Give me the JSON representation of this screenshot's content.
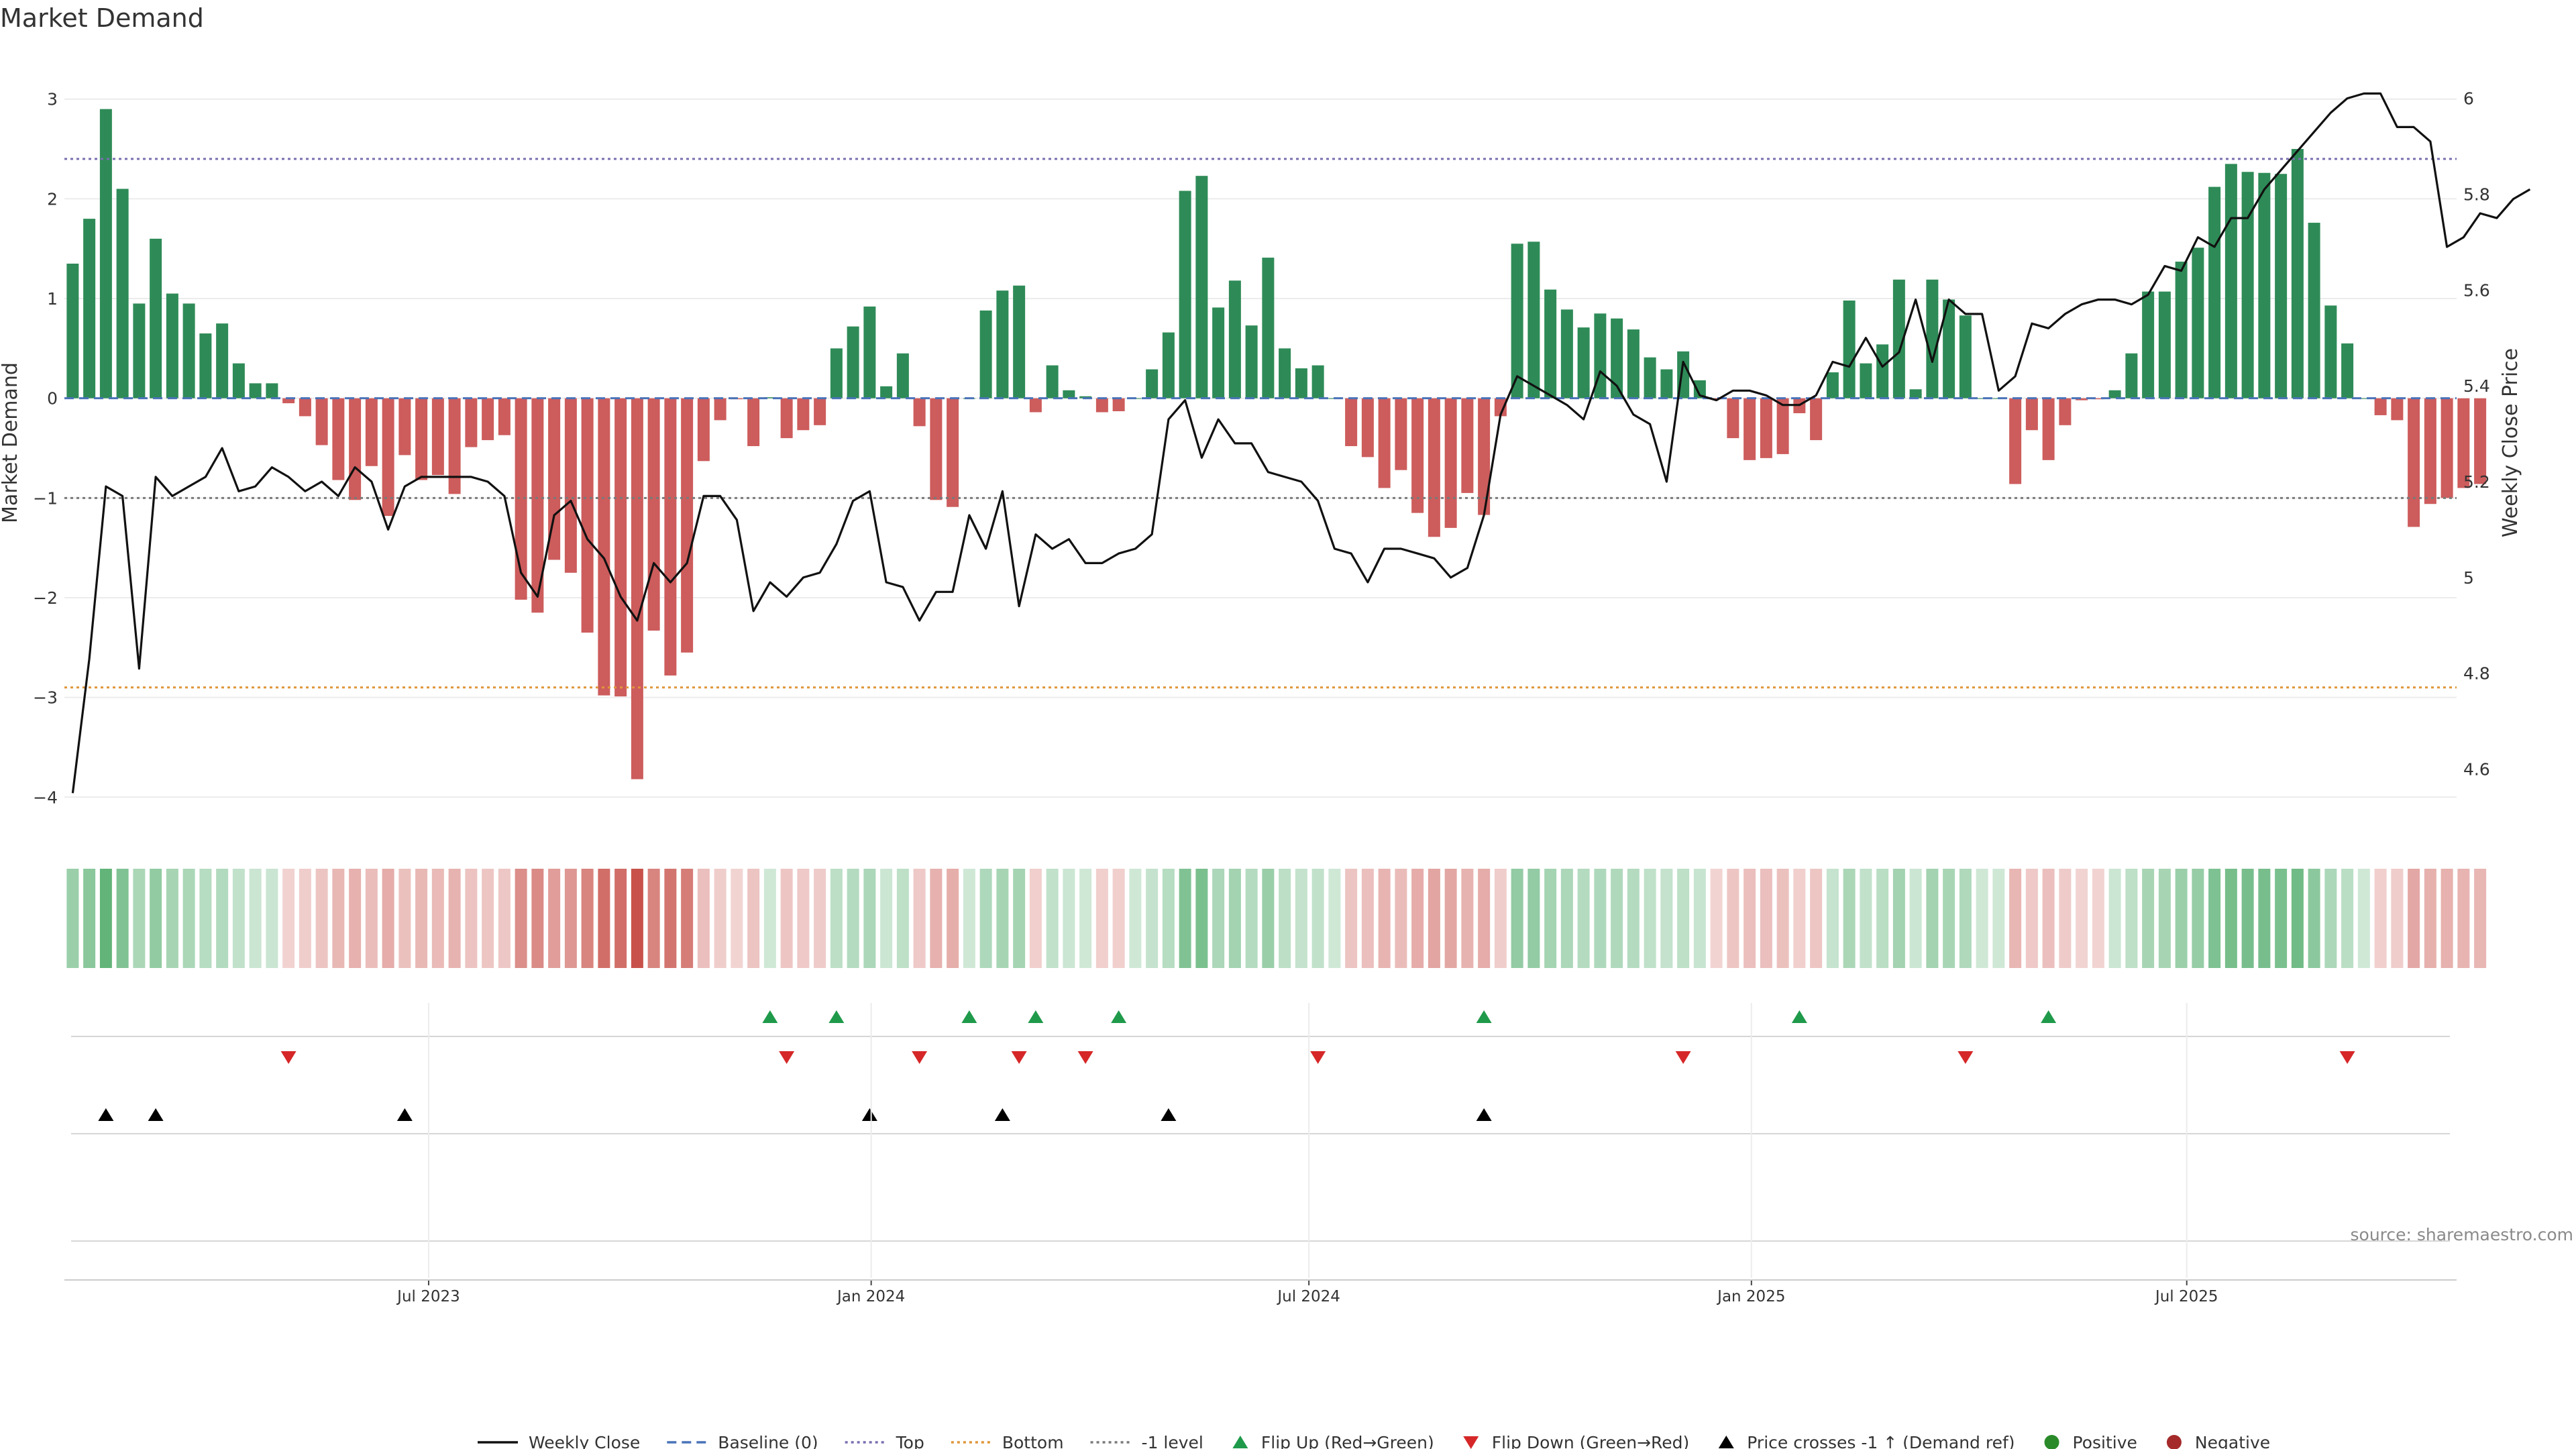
{
  "chart_data": {
    "type": "bar",
    "title": "Market Demand",
    "ylabel": "Market Demand",
    "y2label": "Weekly Close Price",
    "source": "source: sharemaestro.com",
    "ylim": [
      -4.2,
      3.2
    ],
    "y_ticks": [
      3,
      2,
      1,
      0,
      -1,
      -2,
      -3,
      -4
    ],
    "y_tick_labels": [
      "3",
      "2",
      "1",
      "0",
      "−1",
      "−2",
      "−3",
      "−4"
    ],
    "y2lim": [
      4.5,
      6.04
    ],
    "y2_ticks": [
      6,
      5.8,
      5.6,
      5.4,
      5.2,
      5,
      4.8,
      4.6
    ],
    "y2_tick_labels": [
      "6",
      "5.8",
      "5.6",
      "5.4",
      "5.2",
      "5",
      "4.8",
      "4.6"
    ],
    "levels": {
      "top": 2.4,
      "bottom": -2.9,
      "minus_one": -1
    },
    "x_start": "2023-02-03",
    "x_end": "2025-10-31",
    "x_ticks": [
      {
        "date": "2023-07-01",
        "label": "Jul 2023"
      },
      {
        "date": "2024-01-01",
        "label": "Jan 2024"
      },
      {
        "date": "2024-07-01",
        "label": "Jul 2024"
      },
      {
        "date": "2025-01-01",
        "label": "Jan 2025"
      },
      {
        "date": "2025-07-01",
        "label": "Jul 2025"
      }
    ],
    "series": [
      {
        "name": "Market Demand",
        "values": [
          1.35,
          1.8,
          2.9,
          2.1,
          0.95,
          1.6,
          1.05,
          0.95,
          0.65,
          0.75,
          0.35,
          0.15,
          0.15,
          -0.05,
          -0.18,
          -0.47,
          -0.82,
          -1.02,
          -0.68,
          -1.18,
          -0.57,
          -0.82,
          -0.77,
          -0.96,
          -0.49,
          -0.42,
          -0.37,
          -2.02,
          -2.15,
          -1.62,
          -1.75,
          -2.35,
          -2.98,
          -2.99,
          -3.82,
          -2.33,
          -2.78,
          -2.55,
          -0.63,
          -0.22,
          -0.01,
          -0.48,
          0.01,
          -0.4,
          -0.32,
          -0.27,
          0.5,
          0.72,
          0.92,
          0.12,
          0.45,
          -0.28,
          -1.02,
          -1.09,
          0,
          0.88,
          1.08,
          1.13,
          -0.14,
          0.33,
          0.08,
          0.02,
          -0.14,
          -0.13,
          0,
          0.29,
          0.66,
          2.08,
          2.23,
          0.91,
          1.18,
          0.73,
          1.41,
          0.5,
          0.3,
          0.33,
          0,
          -0.48,
          -0.59,
          -0.9,
          -0.72,
          -1.15,
          -1.39,
          -1.3,
          -0.95,
          -1.17,
          -0.18,
          1.55,
          1.57,
          1.09,
          0.89,
          0.71,
          0.85,
          0.8,
          0.69,
          0.41,
          0.29,
          0.47,
          0.18,
          -0.01,
          -0.4,
          -0.62,
          -0.6,
          -0.56,
          -0.15,
          -0.42,
          0.26,
          0.98,
          0.35,
          0.54,
          1.19,
          0.09,
          1.19,
          0.99,
          0.83,
          0,
          0,
          -0.86,
          -0.32,
          -0.62,
          -0.27,
          -0.02,
          -0.01,
          0.08,
          0.45,
          1.07,
          1.07,
          1.37,
          1.51,
          2.12,
          2.35,
          2.27,
          2.26,
          2.25,
          2.5,
          1.76,
          0.93,
          0.55,
          0,
          -0.17,
          -0.22,
          -1.29,
          -1.06,
          -1.0,
          -0.9,
          -0.86
        ]
      },
      {
        "name": "Weekly Close",
        "values": [
          4.55,
          4.83,
          5.19,
          5.17,
          4.81,
          5.21,
          5.17,
          5.19,
          5.21,
          5.27,
          5.18,
          5.19,
          5.23,
          5.21,
          5.18,
          5.2,
          5.17,
          5.23,
          5.2,
          5.1,
          5.19,
          5.21,
          5.21,
          5.21,
          5.21,
          5.2,
          5.17,
          5.01,
          4.96,
          5.13,
          5.16,
          5.08,
          5.04,
          4.96,
          4.91,
          5.03,
          4.99,
          5.03,
          5.17,
          5.17,
          5.12,
          4.93,
          4.99,
          4.96,
          5.0,
          5.01,
          5.07,
          5.16,
          5.18,
          4.99,
          4.98,
          4.91,
          4.97,
          4.97,
          5.13,
          5.06,
          5.18,
          4.94,
          5.09,
          5.06,
          5.08,
          5.03,
          5.03,
          5.05,
          5.06,
          5.09,
          5.33,
          5.37,
          5.25,
          5.33,
          5.28,
          5.28,
          5.22,
          5.21,
          5.2,
          5.16,
          5.06,
          5.05,
          4.99,
          5.06,
          5.06,
          5.05,
          5.04,
          5.0,
          5.02,
          5.13,
          5.34,
          5.42,
          5.4,
          5.38,
          5.36,
          5.33,
          5.43,
          5.4,
          5.34,
          5.32,
          5.2,
          5.45,
          5.38,
          5.37,
          5.39,
          5.39,
          5.38,
          5.36,
          5.36,
          5.38,
          5.45,
          5.44,
          5.5,
          5.44,
          5.47,
          5.58,
          5.45,
          5.58,
          5.55,
          5.55,
          5.39,
          5.42,
          5.53,
          5.52,
          5.55,
          5.57,
          5.58,
          5.58,
          5.57,
          5.59,
          5.65,
          5.64,
          5.71,
          5.69,
          5.75,
          5.75,
          5.81,
          5.85,
          5.89,
          5.93,
          5.97,
          6.0,
          6.01,
          6.01,
          5.94,
          5.94,
          5.91,
          5.69,
          5.71,
          5.76,
          5.75,
          5.79,
          5.81
        ]
      }
    ],
    "flip_up_weeks": [
      42,
      46,
      54,
      58,
      63,
      85,
      104,
      119
    ],
    "flip_down_weeks": [
      13,
      43,
      51,
      57,
      61,
      75,
      97,
      114,
      137
    ],
    "price_cross_weeks": [
      2,
      5,
      20,
      48,
      56,
      66,
      85
    ],
    "colors": {
      "positive": "#2e8b57",
      "negative": "#cd5c5c",
      "price": "#111111",
      "baseline": "#4a73b8",
      "top": "#7a6fb0",
      "bottom": "#e0953a",
      "minus_one": "#7a7a7a",
      "flip_up": "#1f9a4a",
      "flip_down": "#d62728",
      "price_cross": "#000000",
      "strip_positive": "#3fa35c",
      "strip_negative": "#c8524b",
      "legend_positive": "#2a8a2a",
      "legend_negative": "#a52a2a"
    },
    "legend": {
      "position": "bottom-center",
      "items": [
        {
          "key": "weekly_close",
          "label": "Weekly Close",
          "marker": "solid-line",
          "color": "#111111"
        },
        {
          "key": "baseline",
          "label": "Baseline (0)",
          "marker": "dashed-line",
          "color": "#4a73b8"
        },
        {
          "key": "top",
          "label": "Top",
          "marker": "dotted-line",
          "color": "#7a6fb0"
        },
        {
          "key": "bottom",
          "label": "Bottom",
          "marker": "dotted-line",
          "color": "#e0953a"
        },
        {
          "key": "minus_one",
          "label": "-1 level",
          "marker": "dotted-line",
          "color": "#7a7a7a"
        },
        {
          "key": "flip_up",
          "label": "Flip Up (Red→Green)",
          "marker": "triangle-up",
          "color": "#1f9a4a"
        },
        {
          "key": "flip_down",
          "label": "Flip Down (Green→Red)",
          "marker": "triangle-down",
          "color": "#d62728"
        },
        {
          "key": "price_cross",
          "label": "Price crosses -1 ↑ (Demand ref)",
          "marker": "triangle-up",
          "color": "#000000"
        },
        {
          "key": "positive",
          "label": "Positive",
          "marker": "circle",
          "color": "#2a8a2a"
        },
        {
          "key": "negative",
          "label": "Negative",
          "marker": "circle",
          "color": "#a52a2a"
        }
      ]
    }
  }
}
